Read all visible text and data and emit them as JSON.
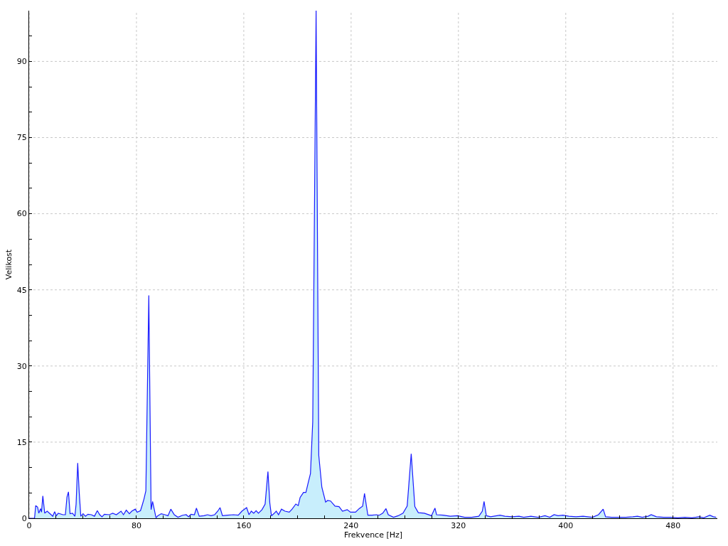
{
  "chart_data": {
    "type": "area",
    "xlabel": "Frekvence [Hz]",
    "ylabel": "Velikost",
    "xlim": [
      0,
      513
    ],
    "ylim": [
      0,
      100
    ],
    "xticks": [
      0,
      {
        "value": 20,
        "label": null
      },
      {
        "value": 40,
        "label": null
      },
      {
        "value": 60,
        "label": null
      },
      80,
      {
        "value": 100,
        "label": null
      },
      {
        "value": 120,
        "label": null
      },
      {
        "value": 140,
        "label": null
      },
      160,
      {
        "value": 180,
        "label": null
      },
      {
        "value": 200,
        "label": null
      },
      {
        "value": 220,
        "label": null
      },
      240,
      {
        "value": 260,
        "label": null
      },
      {
        "value": 280,
        "label": null
      },
      {
        "value": 300,
        "label": null
      },
      320,
      {
        "value": 340,
        "label": null
      },
      {
        "value": 360,
        "label": null
      },
      {
        "value": 380,
        "label": null
      },
      400,
      {
        "value": 420,
        "label": null
      },
      {
        "value": 440,
        "label": null
      },
      {
        "value": 460,
        "label": null
      },
      480,
      {
        "value": 500,
        "label": null
      }
    ],
    "yticks": [
      0,
      {
        "value": 5,
        "label": null
      },
      {
        "value": 10,
        "label": null
      },
      15,
      {
        "value": 20,
        "label": null
      },
      {
        "value": 25,
        "label": null
      },
      30,
      {
        "value": 35,
        "label": null
      },
      {
        "value": 40,
        "label": null
      },
      45,
      {
        "value": 50,
        "label": null
      },
      {
        "value": 55,
        "label": null
      },
      60,
      {
        "value": 65,
        "label": null
      },
      {
        "value": 70,
        "label": null
      },
      75,
      {
        "value": 80,
        "label": null
      },
      {
        "value": 85,
        "label": null
      },
      90,
      {
        "value": 95,
        "label": null
      }
    ],
    "grid": true,
    "series": [
      {
        "color": "#1a1aff",
        "x": [
          0,
          4,
          4.9,
          6.3,
          7.2,
          8.5,
          9.2,
          10.2,
          11.6,
          13.4,
          16.4,
          17.6,
          19.0,
          20.3,
          21.7,
          25.2,
          27.0,
          28.2,
          29.3,
          30.5,
          32.3,
          34.1,
          35.0,
          36.2,
          37.3,
          38.5,
          40.2,
          42.0,
          43.8,
          46.4,
          48.7,
          50.8,
          52.6,
          54.3,
          56.1,
          59.7,
          62.3,
          65.0,
          68.5,
          70.3,
          72.4,
          74.7,
          76.5,
          79.1,
          80.5,
          83.0,
          84.4,
          85.6,
          87.0,
          89.2,
          90.9,
          92.0,
          94.6,
          95.9,
          98.5,
          101.2,
          103.5,
          105.6,
          108.2,
          110.9,
          114.4,
          117.1,
          118.8,
          120.6,
          123.2,
          124.7,
          126.8,
          130.3,
          133.0,
          135.6,
          138.3,
          140.6,
          142.3,
          144.1,
          148.0,
          152.4,
          155.9,
          158.6,
          162.1,
          163.9,
          165.6,
          167.4,
          169.2,
          170.9,
          173.6,
          175.9,
          178.0,
          179.4,
          180.6,
          182.4,
          184.2,
          185.9,
          188.1,
          190.7,
          193.9,
          196.0,
          198.8,
          200.6,
          202.0,
          204.5,
          206.3,
          208.0,
          209.7,
          211.4,
          213.9,
          215.9,
          218.2,
          221.0,
          222.5,
          224.7,
          228.0,
          231.0,
          233.6,
          237.1,
          239.5,
          243.3,
          246.0,
          248.6,
          250.0,
          251.3,
          252.5,
          255.7,
          258.9,
          261.0,
          263.6,
          266.0,
          267.7,
          271.6,
          275.1,
          278.7,
          281.8,
          284.8,
          287.5,
          290.1,
          294.6,
          299.9,
          302.5,
          303.7,
          308.7,
          313.9,
          319.3,
          324.6,
          329.9,
          335.2,
          337.8,
          339.1,
          340.8,
          344.0,
          351.0,
          354.6,
          359.9,
          365.2,
          368.7,
          374.0,
          379.3,
          384.6,
          388.1,
          391.3,
          394.3,
          397.9,
          402.3,
          407.6,
          412.9,
          419.9,
          424.4,
          427.9,
          429.7,
          434.1,
          439.4,
          444.7,
          450.0,
          453.5,
          457.0,
          461.4,
          463.7,
          467.6,
          472.9,
          478.2,
          483.5,
          488.8,
          494.1,
          499.4,
          502.9,
          507.4,
          510.0,
          512.1
        ],
        "values": [
          0,
          0,
          2.5,
          2.2,
          1.0,
          1.9,
          1.2,
          4.4,
          1.0,
          1.4,
          0.7,
          0.4,
          1.3,
          0.5,
          1.0,
          0.7,
          0.7,
          4.2,
          5.2,
          0.9,
          1.0,
          0.4,
          2.8,
          10.9,
          5.2,
          0.4,
          0.9,
          0.4,
          0.8,
          0.7,
          0.4,
          1.5,
          0.7,
          0.3,
          0.8,
          0.7,
          1.0,
          0.7,
          1.4,
          0.7,
          1.6,
          0.9,
          1.4,
          1.8,
          1.2,
          1.5,
          2.7,
          3.8,
          5.4,
          43.9,
          1.7,
          3.3,
          0.1,
          0.5,
          0.9,
          0.7,
          0.5,
          1.8,
          0.7,
          0.2,
          0.6,
          0.7,
          0.3,
          0.8,
          0.7,
          2.0,
          0.4,
          0.5,
          0.7,
          0.5,
          0.7,
          1.4,
          2.1,
          0.5,
          0.6,
          0.7,
          0.6,
          1.4,
          2.1,
          0.7,
          1.4,
          1.0,
          1.5,
          1.0,
          1.7,
          2.8,
          9.2,
          3.0,
          0.5,
          0.9,
          1.4,
          0.7,
          1.8,
          1.4,
          1.2,
          1.8,
          2.8,
          2.5,
          4.1,
          5.1,
          5.1,
          7.0,
          8.8,
          19.0,
          100,
          12.4,
          6.1,
          3.2,
          3.5,
          3.4,
          2.4,
          2.3,
          1.4,
          1.7,
          1.2,
          1.2,
          1.9,
          2.4,
          4.9,
          2.6,
          0.6,
          0.6,
          0.7,
          0.6,
          1.0,
          1.9,
          0.7,
          0.2,
          0.5,
          1.0,
          2.4,
          12.7,
          2.3,
          1.1,
          1.0,
          0.5,
          2.0,
          0.7,
          0.6,
          0.4,
          0.5,
          0.2,
          0.2,
          0.4,
          1.4,
          3.3,
          0.5,
          0.3,
          0.6,
          0.4,
          0.3,
          0.4,
          0.2,
          0.4,
          0.2,
          0.5,
          0.2,
          0.7,
          0.5,
          0.6,
          0.4,
          0.3,
          0.4,
          0.2,
          0.7,
          1.8,
          0.3,
          0.2,
          0.2,
          0.2,
          0.3,
          0.4,
          0.2,
          0.4,
          0.7,
          0.3,
          0.2,
          0.2,
          0.1,
          0.2,
          0.1,
          0.3,
          0.1,
          0.6,
          0.3,
          0.2
        ]
      }
    ]
  }
}
